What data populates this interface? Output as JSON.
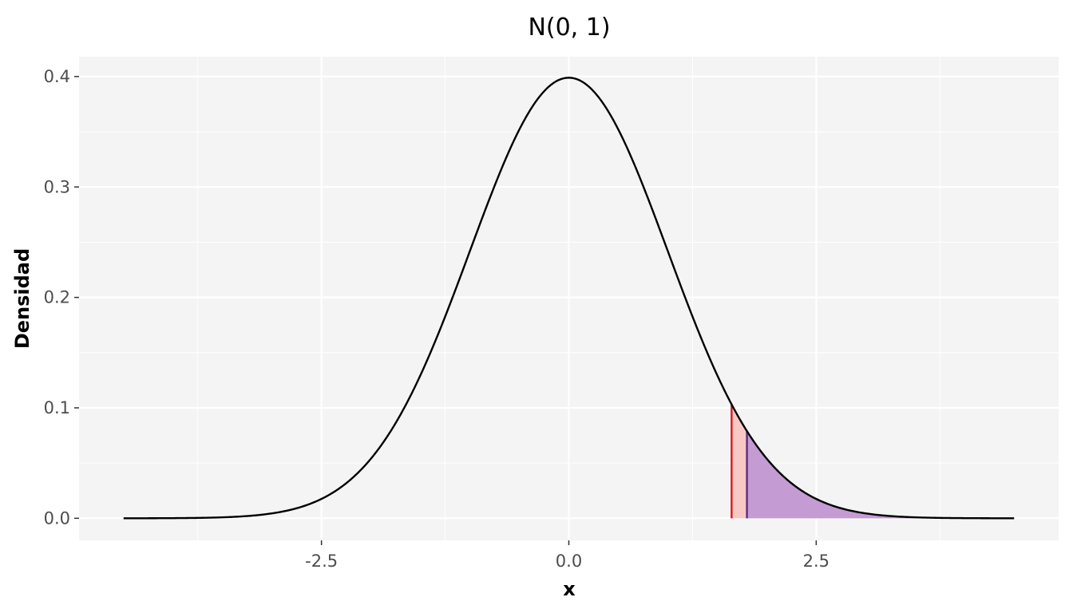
{
  "chart_data": {
    "type": "area",
    "title": "N(0, 1)",
    "xlabel": "x",
    "ylabel": "Densidad",
    "distribution": {
      "name": "normal",
      "mean": 0,
      "sd": 1
    },
    "curve_range": [
      -4.5,
      4.5
    ],
    "xlim": [
      -4.95,
      4.95
    ],
    "ylim": [
      -0.02,
      0.418
    ],
    "x_ticks": [
      -2.5,
      0.0,
      2.5
    ],
    "x_tick_labels": [
      "-2.5",
      "0.0",
      "2.5"
    ],
    "y_ticks": [
      0.0,
      0.1,
      0.2,
      0.3,
      0.4
    ],
    "y_tick_labels": [
      "0.0",
      "0.1",
      "0.2",
      "0.3",
      "0.4"
    ],
    "grid": true,
    "shaded_regions": [
      {
        "from": 1.645,
        "to": 4.5,
        "color": "#f8c9c4"
      },
      {
        "from": 1.8,
        "to": 4.5,
        "color": "#c49bd3"
      }
    ],
    "vertical_lines": [
      {
        "x": 1.645,
        "color": "#d7191c"
      },
      {
        "x": 1.8,
        "color": "#5a2d82"
      }
    ],
    "curve_color": "#000000",
    "panel_background": "#f4f4f4",
    "grid_color": "#ffffff"
  }
}
